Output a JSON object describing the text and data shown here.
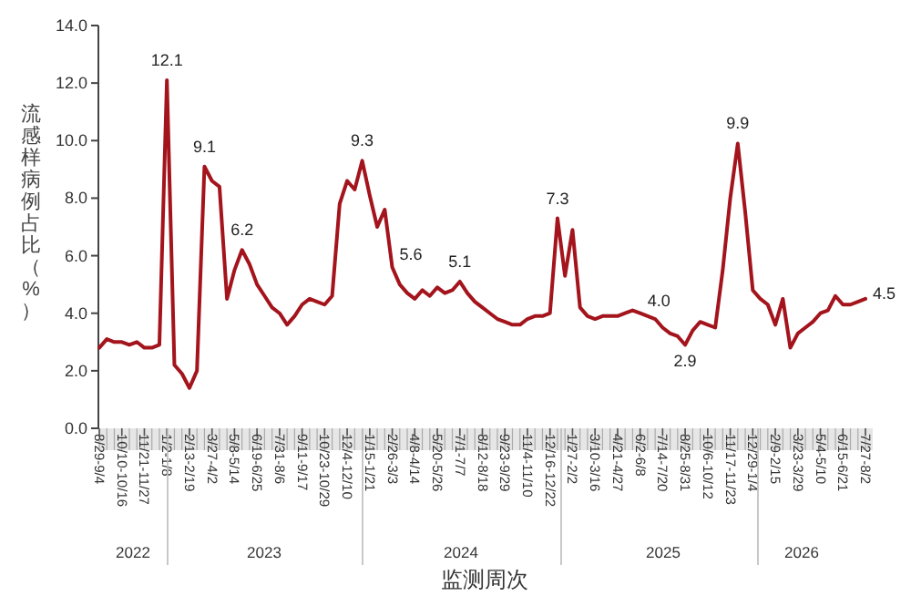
{
  "chart_data": {
    "type": "line",
    "xlabel": "监测周次",
    "ylabel": "流感样病例占比（%）",
    "categories": [
      "8/29-9/4",
      null,
      null,
      "10/10-10/16",
      null,
      null,
      "11/21-11/27",
      null,
      null,
      "1/2-1/8",
      null,
      null,
      "2/13-2/19",
      null,
      null,
      "3/27-4/2",
      null,
      null,
      "5/8-5/14",
      null,
      null,
      "6/19-6/25",
      null,
      null,
      "7/31-8/6",
      null,
      null,
      "9/11-9/17",
      null,
      null,
      "10/23-10/29",
      null,
      null,
      "12/4-12/10",
      null,
      null,
      "1/15-1/21",
      null,
      null,
      "2/26-3/3",
      null,
      null,
      "4/8-4/14",
      null,
      null,
      "5/20-5/26",
      null,
      null,
      "7/1-7/7",
      null,
      null,
      "8/12-8/18",
      null,
      null,
      "9/23-9/29",
      null,
      null,
      "11/4-11/10",
      null,
      null,
      "12/16-12/22",
      null,
      null,
      "1/27-2/2",
      null,
      null,
      "3/10-3/16",
      null,
      null,
      "4/21-4/27",
      null,
      null,
      "6/2-6/8",
      null,
      null,
      "7/14-7/20",
      null,
      null,
      "8/25-8/31",
      null,
      null,
      "10/6-10/12",
      null,
      null,
      "11/17-11/23",
      null,
      null,
      "12/29-1/4",
      null,
      null,
      "2/9-2/15",
      null,
      null,
      "3/23-3/29",
      null,
      null,
      "5/4-5/10",
      null,
      null,
      "6/15-6/21",
      null,
      null,
      "7/27-8/2"
    ],
    "series": [
      {
        "color": "#a3141c",
        "values": [
          2.8,
          3.1,
          3.0,
          3.0,
          2.9,
          3.0,
          2.8,
          2.8,
          2.9,
          12.1,
          2.2,
          1.9,
          1.4,
          2.0,
          9.1,
          8.6,
          8.4,
          4.5,
          5.5,
          6.2,
          5.7,
          5.0,
          4.6,
          4.2,
          4.0,
          3.6,
          3.9,
          4.3,
          4.5,
          4.4,
          4.3,
          4.6,
          7.8,
          8.6,
          8.3,
          9.3,
          8.1,
          7.0,
          7.6,
          5.6,
          5.0,
          4.7,
          4.5,
          4.8,
          4.6,
          4.9,
          4.7,
          4.8,
          5.1,
          4.7,
          4.4,
          4.2,
          4.0,
          3.8,
          3.7,
          3.6,
          3.6,
          3.8,
          3.9,
          3.9,
          4.0,
          7.3,
          5.3,
          6.9,
          4.2,
          3.9,
          3.8,
          3.9,
          3.9,
          3.9,
          4.0,
          4.1,
          4.0,
          3.9,
          3.8,
          3.5,
          3.3,
          3.2,
          2.9,
          3.4,
          3.7,
          3.6,
          3.5,
          5.5,
          8.0,
          9.9,
          7.5,
          4.8,
          4.5,
          4.3,
          3.6,
          4.5,
          2.8,
          3.3,
          3.5,
          3.7,
          4.0,
          4.1,
          4.6,
          4.3,
          4.3,
          4.4,
          4.5
        ],
        "value_labels": [
          null,
          null,
          null,
          null,
          null,
          null,
          null,
          null,
          null,
          "12.1",
          null,
          null,
          null,
          null,
          "9.1",
          null,
          null,
          null,
          null,
          "6.2",
          null,
          null,
          null,
          null,
          null,
          null,
          null,
          null,
          null,
          null,
          null,
          null,
          null,
          null,
          null,
          "9.3",
          null,
          null,
          null,
          "5.6",
          null,
          null,
          null,
          null,
          null,
          null,
          null,
          null,
          "5.1",
          null,
          null,
          null,
          null,
          null,
          null,
          null,
          null,
          null,
          null,
          null,
          null,
          "7.3",
          null,
          null,
          null,
          null,
          null,
          null,
          null,
          null,
          null,
          null,
          "4.0",
          null,
          null,
          null,
          null,
          null,
          "2.9",
          null,
          null,
          null,
          null,
          null,
          null,
          "9.9",
          null,
          null,
          null,
          null,
          null,
          null,
          null,
          null,
          null,
          null,
          null,
          null,
          null,
          null,
          null,
          null,
          "4.5"
        ]
      }
    ],
    "ylim": [
      0,
      14
    ],
    "yticks": [
      {
        "value": 0,
        "label": "0.0"
      },
      {
        "value": 2,
        "label": "2.0"
      },
      {
        "value": 4,
        "label": "4.0"
      },
      {
        "value": 6,
        "label": "6.0"
      },
      {
        "value": 8,
        "label": "8.0"
      },
      {
        "value": 10,
        "label": "10.0"
      },
      {
        "value": 12,
        "label": "12.0"
      },
      {
        "value": 14,
        "label": "14.0"
      }
    ],
    "annotations": [
      "2022",
      "2023",
      "2024",
      "2025",
      "2026"
    ],
    "grid": false
  }
}
